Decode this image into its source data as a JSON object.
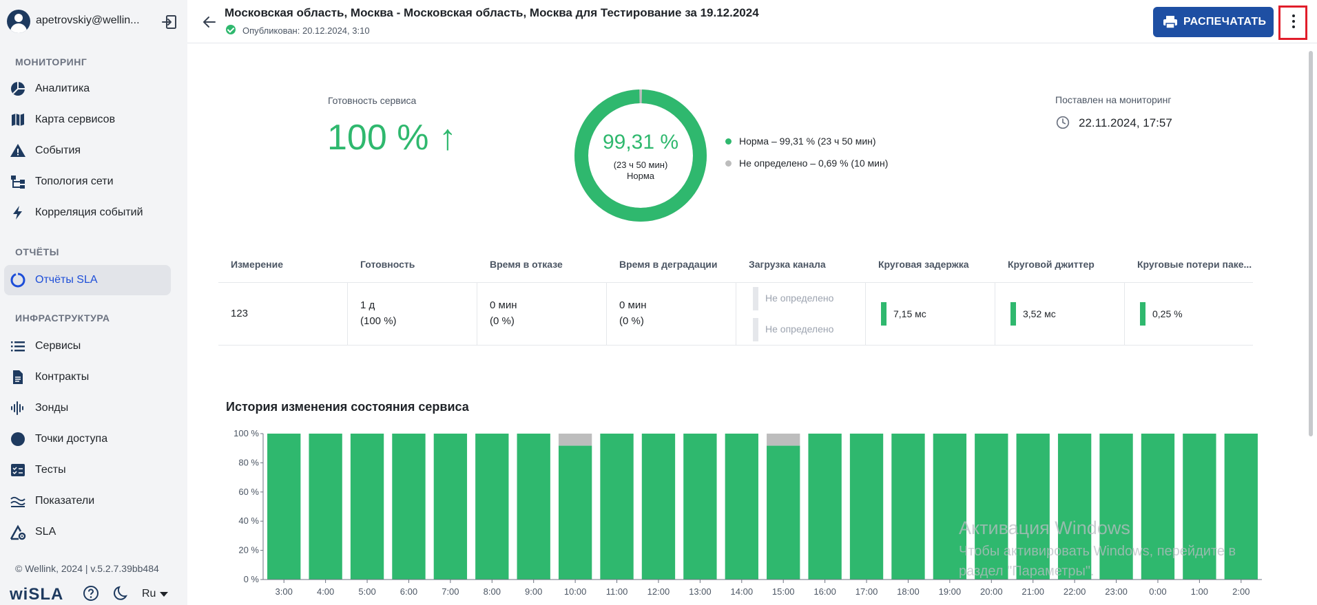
{
  "sidebar": {
    "user_email": "apetrovskiy@wellin...",
    "sections": {
      "monitoring": "МОНИТОРИНГ",
      "reports": "ОТЧЁТЫ",
      "infrastructure": "ИНФРАСТРУКТУРА"
    },
    "items": [
      {
        "label": "Аналитика",
        "icon": "pie-chart-icon"
      },
      {
        "label": "Карта сервисов",
        "icon": "map-icon"
      },
      {
        "label": "События",
        "icon": "warning-icon"
      },
      {
        "label": "Топология сети",
        "icon": "topology-icon"
      },
      {
        "label": "Корреляция событий",
        "icon": "bolt-icon"
      },
      {
        "label": "Отчёты SLA",
        "icon": "sla-report-icon",
        "active": true
      },
      {
        "label": "Сервисы",
        "icon": "list-icon"
      },
      {
        "label": "Контракты",
        "icon": "document-icon"
      },
      {
        "label": "Зонды",
        "icon": "probe-icon"
      },
      {
        "label": "Точки доступа",
        "icon": "access-point-icon"
      },
      {
        "label": "Тесты",
        "icon": "tests-icon"
      },
      {
        "label": "Показатели",
        "icon": "metrics-icon"
      },
      {
        "label": "SLA",
        "icon": "sla-gear-icon"
      }
    ],
    "copyright": "© Wellink, 2024 | v.5.2.7.39bb484",
    "brand": "wiSLA",
    "language": "Ru"
  },
  "header": {
    "title": "Московская область, Москва - Московская область, Москва для Тестирование за 19.12.2024",
    "published": "Опубликован: 20.12.2024, 3:10",
    "print_label": "РАСПЕЧАТАТЬ"
  },
  "summary": {
    "readiness_label": "Готовность сервиса",
    "readiness_value": "100 % ↑",
    "donut_percent": "99,31 %",
    "donut_duration": "(23 ч 50 мин)",
    "donut_status": "Норма",
    "donut_norm_fraction": 0.9931,
    "legend": [
      {
        "text": "Норма – 99,31 % (23 ч 50 мин)",
        "color": "#2fb86e"
      },
      {
        "text": "Не определено – 0,69 % (10 мин)",
        "color": "#bdbdbd"
      }
    ],
    "monitoring_label": "Поставлен на мониторинг",
    "monitoring_date": "22.11.2024, 17:57"
  },
  "table": {
    "headers": [
      "Измерение",
      "Готовность",
      "Время в отказе",
      "Время в деградации",
      "Загрузка канала",
      "Круговая задержка",
      "Круговой джиттер",
      "Круговые потери паке..."
    ],
    "row": {
      "measurement": "123",
      "readiness_line1": "1 д",
      "readiness_line2": "(100 %)",
      "downtime_line1": "0 мин",
      "downtime_line2": "(0 %)",
      "degradation_line1": "0 мин",
      "degradation_line2": "(0 %)",
      "channel_load_1": "Не определено",
      "channel_load_2": "Не определено",
      "rtt": "7,15 мс",
      "jitter": "3,52 мс",
      "packet_loss": "0,25 %"
    }
  },
  "chart_title": "История изменения состояния сервиса",
  "chart_data": {
    "type": "bar",
    "stacked": true,
    "categories": [
      "3:00",
      "4:00",
      "5:00",
      "6:00",
      "7:00",
      "8:00",
      "9:00",
      "10:00",
      "11:00",
      "12:00",
      "13:00",
      "14:00",
      "15:00",
      "16:00",
      "17:00",
      "18:00",
      "19:00",
      "20:00",
      "21:00",
      "22:00",
      "23:00",
      "0:00",
      "1:00",
      "2:00"
    ],
    "series": [
      {
        "color": "#2fb86e",
        "values": [
          100,
          100,
          100,
          100,
          100,
          100,
          100,
          91.7,
          100,
          100,
          100,
          100,
          91.7,
          100,
          100,
          100,
          100,
          100,
          100,
          100,
          100,
          100,
          100,
          100
        ]
      },
      {
        "color": "#bdbdbd",
        "values": [
          0,
          0,
          0,
          0,
          0,
          0,
          0,
          8.3,
          0,
          0,
          0,
          0,
          8.3,
          0,
          0,
          0,
          0,
          0,
          0,
          0,
          0,
          0,
          0,
          0
        ]
      }
    ],
    "yticks": [
      "0 %",
      "20 %",
      "40 %",
      "60 %",
      "80 %",
      "100 %"
    ],
    "ylim": [
      0,
      100
    ]
  },
  "watermark": {
    "line1": "Активация Windows",
    "line2": "Чтобы активировать Windows, перейдите в",
    "line3": "раздел \"Параметры\"."
  }
}
